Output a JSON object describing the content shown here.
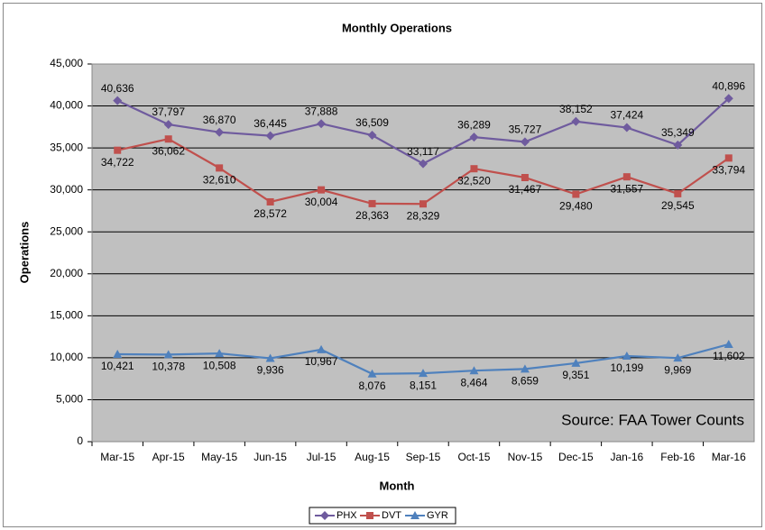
{
  "chart_data": {
    "type": "line",
    "title": "Monthly Operations",
    "x_label": "Month",
    "y_label": "Operations",
    "annotation": "Source: FAA Tower Counts",
    "categories": [
      "Mar-15",
      "Apr-15",
      "May-15",
      "Jun-15",
      "Jul-15",
      "Aug-15",
      "Sep-15",
      "Oct-15",
      "Nov-15",
      "Dec-15",
      "Jan-16",
      "Feb-16",
      "Mar-16"
    ],
    "series": [
      {
        "name": "PHX",
        "color": "#6f5b9e",
        "marker": "diamond",
        "values": [
          40636,
          37797,
          36870,
          36445,
          37888,
          36509,
          33117,
          36289,
          35727,
          38152,
          37424,
          35349,
          40896
        ],
        "value_labels": [
          "40,636",
          "37,797",
          "36,870",
          "36,445",
          "37,888",
          "36,509",
          "33,117",
          "36,289",
          "35,727",
          "38,152",
          "37,424",
          "35,349",
          "40,896"
        ]
      },
      {
        "name": "DVT",
        "color": "#c0504d",
        "marker": "square",
        "values": [
          34722,
          36062,
          32610,
          28572,
          30004,
          28363,
          28329,
          32520,
          31467,
          29480,
          31557,
          29545,
          33794
        ],
        "value_labels": [
          "34,722",
          "36,062",
          "32,610",
          "28,572",
          "30,004",
          "28,363",
          "28,329",
          "32,520",
          "31,467",
          "29,480",
          "31,557",
          "29,545",
          "33,794"
        ]
      },
      {
        "name": "GYR",
        "color": "#4f81bd",
        "marker": "triangle",
        "values": [
          10421,
          10378,
          10508,
          9936,
          10967,
          8076,
          8151,
          8464,
          8659,
          9351,
          10199,
          9969,
          11602
        ],
        "value_labels": [
          "10,421",
          "10,378",
          "10,508",
          "9,936",
          "10,967",
          "8,076",
          "8,151",
          "8,464",
          "8,659",
          "9,351",
          "10,199",
          "9,969",
          "11,602"
        ]
      }
    ],
    "ylim": [
      0,
      45000
    ],
    "yticks": [
      0,
      {
        "value": 5000,
        "label": "5,000"
      },
      {
        "value": 10000,
        "label": "10,000"
      },
      {
        "value": 15000,
        "label": "15,000"
      },
      {
        "value": 20000,
        "label": "20,000"
      },
      {
        "value": 25000,
        "label": "25,000"
      },
      {
        "value": 30000,
        "label": "30,000"
      },
      {
        "value": 35000,
        "label": "35,000"
      },
      {
        "value": 40000,
        "label": "40,000"
      },
      {
        "value": 45000,
        "label": "45,000"
      }
    ],
    "grid": true,
    "legend": "bottom"
  }
}
